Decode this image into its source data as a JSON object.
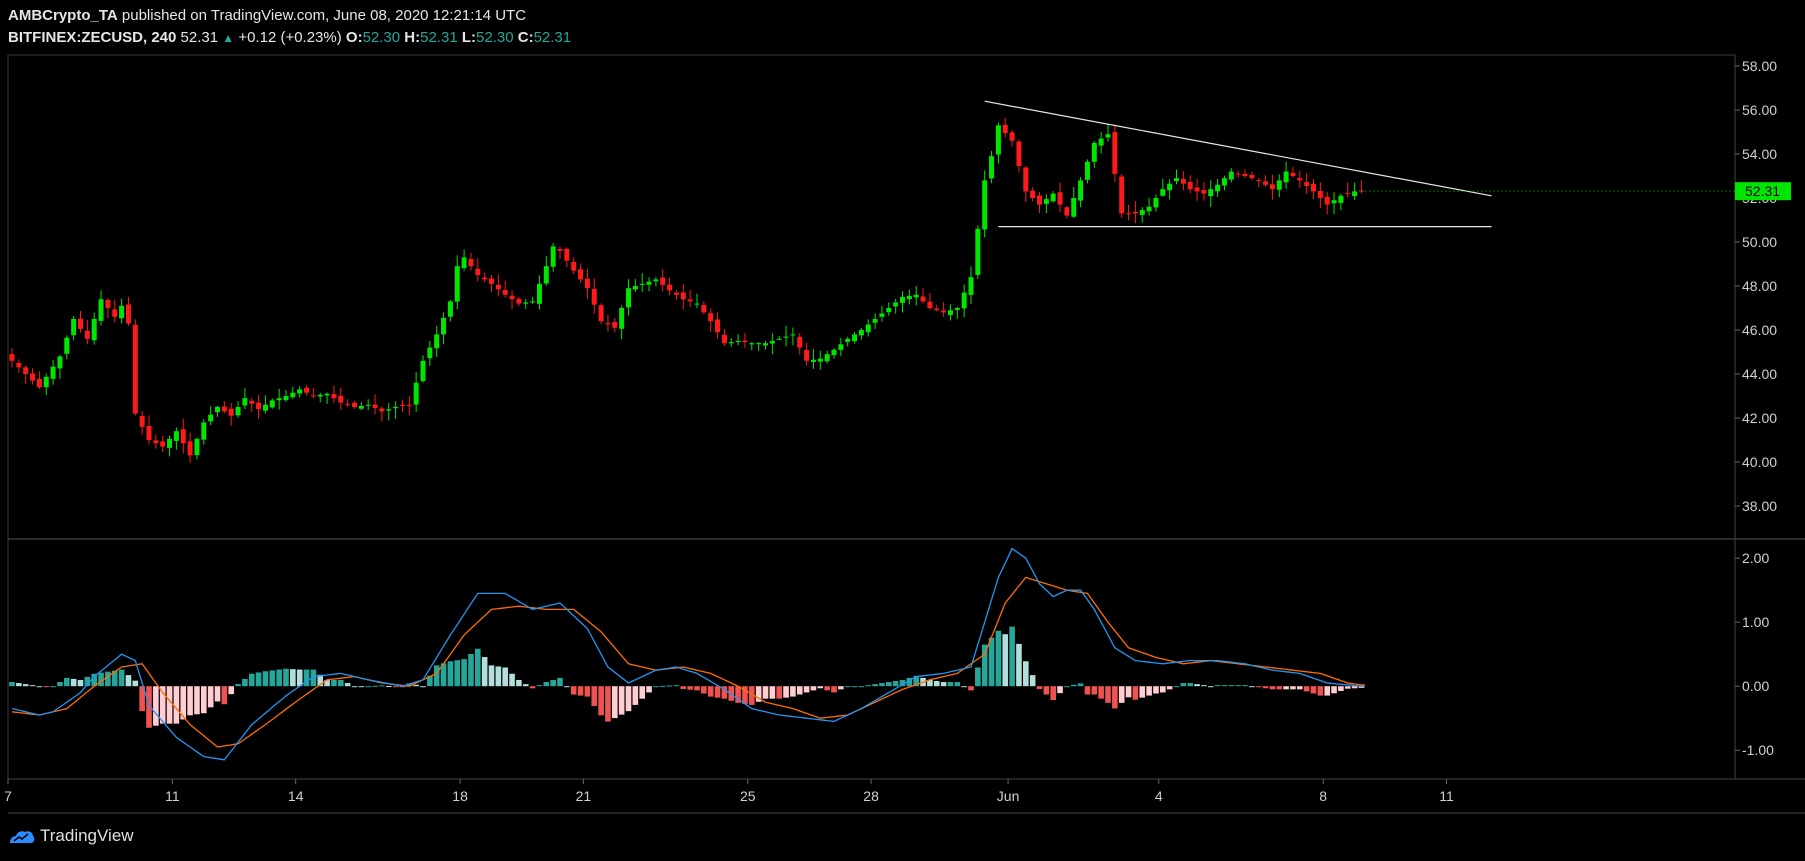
{
  "header": {
    "publisher": "AMBCrypto_TA",
    "published_text": "published on TradingView.com, June 08, 2020 12:21:14 UTC",
    "symbol": "BITFINEX:ZECUSD, 240",
    "last": "52.31",
    "change": "+0.12 (+0.23%)",
    "o_label": "O:",
    "o_value": "52.30",
    "h_label": "H:",
    "h_value": "52.31",
    "l_label": "L:",
    "l_value": "52.30",
    "c_label": "C:",
    "c_value": "52.31"
  },
  "footer": {
    "brand": "TradingView"
  },
  "colors": {
    "up": "#00e600",
    "down": "#ff1a1a",
    "macd": "#2196f3",
    "signal": "#ff6d00",
    "hist_pos_dark": "#26a69a",
    "hist_pos_light": "#b2dfdb",
    "hist_neg_dark": "#ef5350",
    "hist_neg_light": "#ffcdd2"
  },
  "chart_data": [
    {
      "type": "candlestick",
      "price_axis_ticks": [
        "58.00",
        "56.00",
        "54.00",
        "52.00",
        "50.00",
        "48.00",
        "46.00",
        "44.00",
        "42.00",
        "40.00",
        "38.00"
      ],
      "ylim": [
        36.5,
        58.5
      ],
      "last_price_label": "52.31",
      "x_ticks": [
        {
          "label": "7",
          "x": 0
        },
        {
          "label": "11",
          "x": 24
        },
        {
          "label": "14",
          "x": 42
        },
        {
          "label": "18",
          "x": 66
        },
        {
          "label": "21",
          "x": 84
        },
        {
          "label": "25",
          "x": 108
        },
        {
          "label": "28",
          "x": 126
        },
        {
          "label": "Jun",
          "x": 146
        },
        {
          "label": "4",
          "x": 168
        },
        {
          "label": "8",
          "x": 192
        },
        {
          "label": "11",
          "x": 210
        }
      ],
      "close_path": [
        [
          0,
          44.6
        ],
        [
          4,
          43.4
        ],
        [
          7,
          44.8
        ],
        [
          9,
          46.5
        ],
        [
          11,
          45.6
        ],
        [
          13,
          47.4
        ],
        [
          15,
          46.6
        ],
        [
          16,
          47.1
        ],
        [
          17,
          46.3
        ],
        [
          18,
          42.2
        ],
        [
          20,
          41.0
        ],
        [
          22,
          40.7
        ],
        [
          24,
          41.4
        ],
        [
          26,
          40.3
        ],
        [
          28,
          41.8
        ],
        [
          30,
          42.5
        ],
        [
          32,
          42.1
        ],
        [
          34,
          42.9
        ],
        [
          36,
          42.4
        ],
        [
          38,
          42.8
        ],
        [
          40,
          43.0
        ],
        [
          42,
          43.3
        ],
        [
          44,
          43.0
        ],
        [
          46,
          43.1
        ],
        [
          48,
          42.7
        ],
        [
          50,
          42.5
        ],
        [
          52,
          42.6
        ],
        [
          54,
          42.3
        ],
        [
          56,
          42.5
        ],
        [
          58,
          42.6
        ],
        [
          60,
          44.6
        ],
        [
          62,
          45.8
        ],
        [
          64,
          47.3
        ],
        [
          65,
          48.9
        ],
        [
          66,
          49.3
        ],
        [
          68,
          48.5
        ],
        [
          70,
          48.1
        ],
        [
          72,
          47.6
        ],
        [
          74,
          47.2
        ],
        [
          76,
          47.3
        ],
        [
          78,
          48.9
        ],
        [
          79,
          49.8
        ],
        [
          80,
          49.6
        ],
        [
          82,
          48.7
        ],
        [
          84,
          47.9
        ],
        [
          86,
          46.4
        ],
        [
          88,
          46.1
        ],
        [
          90,
          47.9
        ],
        [
          92,
          48.1
        ],
        [
          94,
          48.3
        ],
        [
          96,
          47.8
        ],
        [
          98,
          47.4
        ],
        [
          100,
          47.2
        ],
        [
          102,
          46.4
        ],
        [
          104,
          45.4
        ],
        [
          106,
          45.5
        ],
        [
          108,
          45.4
        ],
        [
          110,
          45.4
        ],
        [
          112,
          45.6
        ],
        [
          114,
          45.8
        ],
        [
          116,
          44.6
        ],
        [
          118,
          44.7
        ],
        [
          120,
          45.1
        ],
        [
          122,
          45.6
        ],
        [
          124,
          46.0
        ],
        [
          126,
          46.5
        ],
        [
          128,
          47.0
        ],
        [
          130,
          47.5
        ],
        [
          132,
          47.6
        ],
        [
          134,
          47.0
        ],
        [
          136,
          46.8
        ],
        [
          138,
          47.0
        ],
        [
          140,
          48.4
        ],
        [
          142,
          52.8
        ],
        [
          143,
          53.9
        ],
        [
          144,
          55.3
        ],
        [
          146,
          54.6
        ],
        [
          148,
          52.3
        ],
        [
          150,
          51.7
        ],
        [
          152,
          52.2
        ],
        [
          154,
          51.2
        ],
        [
          156,
          52.8
        ],
        [
          158,
          54.5
        ],
        [
          160,
          54.9
        ],
        [
          162,
          51.3
        ],
        [
          164,
          51.3
        ],
        [
          166,
          51.6
        ],
        [
          168,
          52.4
        ],
        [
          170,
          52.9
        ],
        [
          172,
          52.4
        ],
        [
          174,
          52.2
        ],
        [
          176,
          52.6
        ],
        [
          178,
          53.2
        ],
        [
          180,
          53.0
        ],
        [
          182,
          52.8
        ],
        [
          184,
          52.4
        ],
        [
          186,
          53.2
        ],
        [
          188,
          52.8
        ],
        [
          190,
          52.3
        ],
        [
          192,
          51.7
        ],
        [
          194,
          52.1
        ],
        [
          196,
          52.3
        ],
        [
          197,
          52.31
        ]
      ],
      "resistance_line": {
        "from": [
          142,
          56.4
        ],
        "to": [
          216,
          52.1
        ]
      },
      "support_line": {
        "from": [
          144,
          50.7
        ],
        "to": [
          216,
          50.7
        ]
      }
    },
    {
      "type": "macd",
      "axis_ticks": [
        "2.00",
        "1.00",
        "0.00",
        "-1.00"
      ],
      "ylim": [
        -1.45,
        2.3
      ],
      "macd_line": [
        [
          0,
          -0.35
        ],
        [
          4,
          -0.45
        ],
        [
          6,
          -0.4
        ],
        [
          10,
          -0.1
        ],
        [
          12,
          0.15
        ],
        [
          16,
          0.5
        ],
        [
          18,
          0.4
        ],
        [
          20,
          -0.3
        ],
        [
          24,
          -0.8
        ],
        [
          28,
          -1.1
        ],
        [
          31,
          -1.15
        ],
        [
          35,
          -0.6
        ],
        [
          40,
          -0.15
        ],
        [
          44,
          0.15
        ],
        [
          48,
          0.2
        ],
        [
          52,
          0.1
        ],
        [
          57,
          0.0
        ],
        [
          60,
          0.1
        ],
        [
          64,
          0.8
        ],
        [
          68,
          1.45
        ],
        [
          72,
          1.45
        ],
        [
          76,
          1.2
        ],
        [
          80,
          1.3
        ],
        [
          84,
          0.9
        ],
        [
          87,
          0.3
        ],
        [
          90,
          0.05
        ],
        [
          94,
          0.25
        ],
        [
          97,
          0.3
        ],
        [
          100,
          0.2
        ],
        [
          104,
          -0.05
        ],
        [
          108,
          -0.35
        ],
        [
          112,
          -0.45
        ],
        [
          116,
          -0.5
        ],
        [
          120,
          -0.55
        ],
        [
          124,
          -0.35
        ],
        [
          128,
          -0.1
        ],
        [
          132,
          0.15
        ],
        [
          136,
          0.2
        ],
        [
          140,
          0.3
        ],
        [
          142,
          1.0
        ],
        [
          144,
          1.7
        ],
        [
          146,
          2.15
        ],
        [
          148,
          2.0
        ],
        [
          150,
          1.6
        ],
        [
          152,
          1.4
        ],
        [
          154,
          1.5
        ],
        [
          156,
          1.5
        ],
        [
          158,
          1.2
        ],
        [
          161,
          0.6
        ],
        [
          164,
          0.4
        ],
        [
          168,
          0.35
        ],
        [
          172,
          0.4
        ],
        [
          176,
          0.4
        ],
        [
          180,
          0.35
        ],
        [
          184,
          0.25
        ],
        [
          188,
          0.2
        ],
        [
          192,
          0.05
        ],
        [
          197,
          0.0
        ]
      ],
      "signal_line": [
        [
          0,
          -0.4
        ],
        [
          4,
          -0.45
        ],
        [
          8,
          -0.35
        ],
        [
          12,
          0.0
        ],
        [
          16,
          0.3
        ],
        [
          19,
          0.35
        ],
        [
          22,
          -0.1
        ],
        [
          26,
          -0.6
        ],
        [
          30,
          -0.95
        ],
        [
          33,
          -0.9
        ],
        [
          37,
          -0.6
        ],
        [
          42,
          -0.2
        ],
        [
          46,
          0.1
        ],
        [
          50,
          0.15
        ],
        [
          54,
          0.05
        ],
        [
          58,
          0.0
        ],
        [
          62,
          0.2
        ],
        [
          66,
          0.8
        ],
        [
          70,
          1.2
        ],
        [
          74,
          1.25
        ],
        [
          78,
          1.2
        ],
        [
          82,
          1.2
        ],
        [
          86,
          0.85
        ],
        [
          90,
          0.35
        ],
        [
          94,
          0.25
        ],
        [
          98,
          0.3
        ],
        [
          102,
          0.2
        ],
        [
          106,
          0.0
        ],
        [
          110,
          -0.25
        ],
        [
          114,
          -0.35
        ],
        [
          118,
          -0.5
        ],
        [
          122,
          -0.45
        ],
        [
          126,
          -0.25
        ],
        [
          130,
          -0.05
        ],
        [
          134,
          0.1
        ],
        [
          138,
          0.2
        ],
        [
          142,
          0.5
        ],
        [
          145,
          1.3
        ],
        [
          148,
          1.7
        ],
        [
          151,
          1.6
        ],
        [
          154,
          1.5
        ],
        [
          157,
          1.45
        ],
        [
          160,
          1.0
        ],
        [
          163,
          0.6
        ],
        [
          167,
          0.45
        ],
        [
          171,
          0.35
        ],
        [
          175,
          0.4
        ],
        [
          179,
          0.35
        ],
        [
          183,
          0.3
        ],
        [
          187,
          0.25
        ],
        [
          191,
          0.2
        ],
        [
          195,
          0.05
        ],
        [
          197,
          0.02
        ]
      ]
    }
  ]
}
